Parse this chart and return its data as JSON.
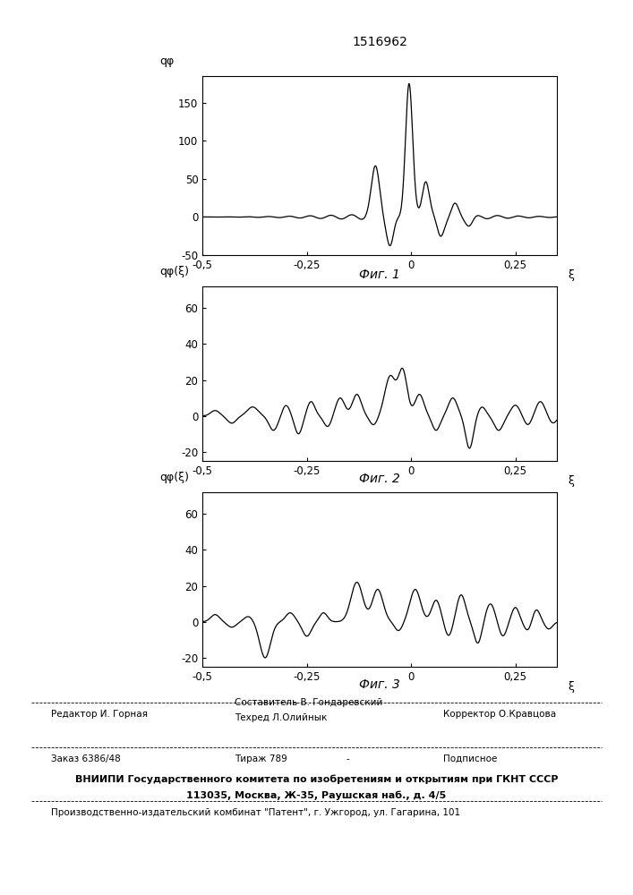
{
  "title": "1516962",
  "fig1_label": "Фиг. 1",
  "fig2_label": "Фиг. 2",
  "fig3_label": "Фиг. 3",
  "ylabel1": "qφ",
  "ylabel23": "qφ(ξ)",
  "xlabel": "ξ",
  "xlim": [
    -0.5,
    0.35
  ],
  "xticks": [
    -0.5,
    -0.25,
    0,
    0.25
  ],
  "xticklabels": [
    "-0,5",
    "-0,25",
    "0",
    "0,25"
  ],
  "plot1_ylim": [
    -50,
    185
  ],
  "plot1_yticks": [
    -50,
    0,
    50,
    100,
    150
  ],
  "plot23_ylim": [
    -25,
    72
  ],
  "plot23_yticks": [
    -20,
    0,
    20,
    40,
    60
  ],
  "footer_editor": "Редактор И. Горная",
  "footer_sostavitel": "Составитель В. Гондаревский",
  "footer_techred": "Техред Л.Олийнык",
  "footer_corrector": "Корректор О.Кравцова",
  "footer_order": "Заказ 6386/48",
  "footer_tirazh": "Тираж 789",
  "footer_dash": "-",
  "footer_podpisnoe": "Подписное",
  "footer_vniip1": "ВНИИПИ Государственного комитета по изобретениям и открытиям при ГКНТ СССР",
  "footer_vniip2": "113035, Москва, Ж-35, Раушская наб., д. 4/5",
  "footer_factory": "Производственно-издательский комбинат \"Патент\", г. Ужгород, ул. Гагарина, 101"
}
